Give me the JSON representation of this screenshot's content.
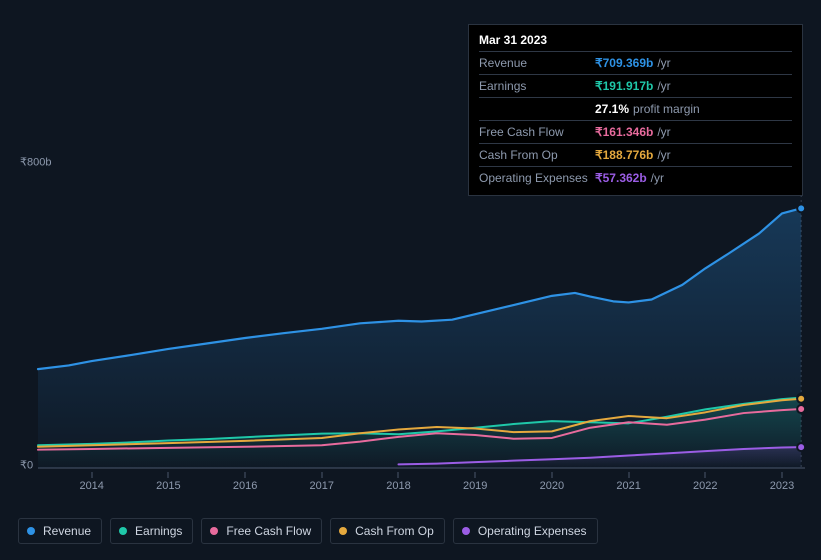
{
  "chart": {
    "type": "line-area",
    "background_color": "#0e1621",
    "grid_color": "#49566b",
    "ylim": [
      0,
      800
    ],
    "xlim": [
      2013.3,
      2023.3
    ],
    "y_ticks": [
      {
        "v": 800,
        "label": "₹800b"
      },
      {
        "v": 0,
        "label": "₹0"
      }
    ],
    "x_ticks": [
      {
        "v": 2014,
        "label": "2014"
      },
      {
        "v": 2015,
        "label": "2015"
      },
      {
        "v": 2016,
        "label": "2016"
      },
      {
        "v": 2017,
        "label": "2017"
      },
      {
        "v": 2018,
        "label": "2018"
      },
      {
        "v": 2019,
        "label": "2019"
      },
      {
        "v": 2020,
        "label": "2020"
      },
      {
        "v": 2021,
        "label": "2021"
      },
      {
        "v": 2022,
        "label": "2022"
      },
      {
        "v": 2023,
        "label": "2023"
      }
    ],
    "label_fontsize": 11,
    "label_color": "#8e9aae",
    "hover_x": 2023.25,
    "series": [
      {
        "id": "revenue",
        "label": "Revenue",
        "color": "#2e92e5",
        "fillTop": "rgba(46,146,229,0.28)",
        "fillBottom": "rgba(46,146,229,0.02)",
        "line_width": 2.2,
        "points": [
          [
            2013.3,
            270
          ],
          [
            2013.7,
            280
          ],
          [
            2014,
            292
          ],
          [
            2014.5,
            308
          ],
          [
            2015,
            325
          ],
          [
            2015.5,
            340
          ],
          [
            2016,
            355
          ],
          [
            2016.5,
            368
          ],
          [
            2017,
            380
          ],
          [
            2017.5,
            395
          ],
          [
            2018,
            402
          ],
          [
            2018.3,
            400
          ],
          [
            2018.7,
            405
          ],
          [
            2019,
            420
          ],
          [
            2019.5,
            445
          ],
          [
            2020,
            470
          ],
          [
            2020.3,
            478
          ],
          [
            2020.5,
            468
          ],
          [
            2020.8,
            455
          ],
          [
            2021,
            452
          ],
          [
            2021.3,
            460
          ],
          [
            2021.7,
            500
          ],
          [
            2022,
            545
          ],
          [
            2022.3,
            585
          ],
          [
            2022.7,
            640
          ],
          [
            2023,
            695
          ],
          [
            2023.25,
            709
          ]
        ],
        "marker_at_hover": true
      },
      {
        "id": "earnings",
        "label": "Earnings",
        "color": "#1fc8a9",
        "fillTop": "rgba(31,200,169,0.22)",
        "fillBottom": "rgba(31,200,169,0.0)",
        "line_width": 2,
        "points": [
          [
            2013.3,
            62
          ],
          [
            2014,
            66
          ],
          [
            2014.5,
            70
          ],
          [
            2015,
            75
          ],
          [
            2015.5,
            79
          ],
          [
            2016,
            84
          ],
          [
            2016.5,
            89
          ],
          [
            2017,
            94
          ],
          [
            2017.5,
            95
          ],
          [
            2018,
            92
          ],
          [
            2018.5,
            100
          ],
          [
            2019,
            110
          ],
          [
            2019.5,
            120
          ],
          [
            2020,
            128
          ],
          [
            2020.5,
            125
          ],
          [
            2021,
            122
          ],
          [
            2021.5,
            140
          ],
          [
            2022,
            160
          ],
          [
            2022.5,
            175
          ],
          [
            2023,
            188
          ],
          [
            2023.25,
            192
          ]
        ],
        "marker_at_hover": true
      },
      {
        "id": "fcf",
        "label": "Free Cash Flow",
        "color": "#e86b9d",
        "fillTop": "rgba(232,107,157,0.0)",
        "fillBottom": "rgba(232,107,157,0.0)",
        "line_width": 2,
        "points": [
          [
            2013.3,
            50
          ],
          [
            2014,
            52
          ],
          [
            2015,
            55
          ],
          [
            2016,
            58
          ],
          [
            2017,
            62
          ],
          [
            2017.5,
            72
          ],
          [
            2018,
            85
          ],
          [
            2018.5,
            95
          ],
          [
            2019,
            90
          ],
          [
            2019.5,
            80
          ],
          [
            2020,
            82
          ],
          [
            2020.5,
            110
          ],
          [
            2021,
            125
          ],
          [
            2021.5,
            118
          ],
          [
            2022,
            132
          ],
          [
            2022.5,
            150
          ],
          [
            2023,
            158
          ],
          [
            2023.25,
            161
          ]
        ],
        "marker_at_hover": true
      },
      {
        "id": "cfo",
        "label": "Cash From Op",
        "color": "#e5a93e",
        "fillTop": "rgba(229,169,62,0.0)",
        "fillBottom": "rgba(229,169,62,0.0)",
        "line_width": 2,
        "points": [
          [
            2013.3,
            58
          ],
          [
            2014,
            62
          ],
          [
            2015,
            68
          ],
          [
            2016,
            74
          ],
          [
            2017,
            82
          ],
          [
            2017.5,
            95
          ],
          [
            2018,
            105
          ],
          [
            2018.5,
            112
          ],
          [
            2019,
            108
          ],
          [
            2019.5,
            98
          ],
          [
            2020,
            100
          ],
          [
            2020.5,
            128
          ],
          [
            2021,
            142
          ],
          [
            2021.5,
            136
          ],
          [
            2022,
            152
          ],
          [
            2022.5,
            172
          ],
          [
            2023,
            185
          ],
          [
            2023.25,
            189
          ]
        ],
        "marker_at_hover": true
      },
      {
        "id": "opex",
        "label": "Operating Expenses",
        "color": "#9b5de5",
        "fillTop": "rgba(155,93,229,0.18)",
        "fillBottom": "rgba(155,93,229,0.0)",
        "line_width": 2,
        "start_x": 2018,
        "points": [
          [
            2018,
            10
          ],
          [
            2018.5,
            12
          ],
          [
            2019,
            16
          ],
          [
            2019.5,
            20
          ],
          [
            2020,
            24
          ],
          [
            2020.5,
            28
          ],
          [
            2021,
            34
          ],
          [
            2021.5,
            40
          ],
          [
            2022,
            46
          ],
          [
            2022.5,
            52
          ],
          [
            2023,
            56
          ],
          [
            2023.25,
            57
          ]
        ],
        "marker_at_hover": true
      }
    ]
  },
  "tooltip": {
    "date": "Mar 31 2023",
    "rows": [
      {
        "label": "Revenue",
        "value": "₹709.369b",
        "suffix": "/yr",
        "color": "#2e92e5"
      },
      {
        "label": "Earnings",
        "value": "₹191.917b",
        "suffix": "/yr",
        "color": "#1fc8a9"
      },
      {
        "label": "",
        "value": "27.1%",
        "suffix": "profit margin",
        "color": "#ffffff"
      },
      {
        "label": "Free Cash Flow",
        "value": "₹161.346b",
        "suffix": "/yr",
        "color": "#e86b9d"
      },
      {
        "label": "Cash From Op",
        "value": "₹188.776b",
        "suffix": "/yr",
        "color": "#e5a93e"
      },
      {
        "label": "Operating Expenses",
        "value": "₹57.362b",
        "suffix": "/yr",
        "color": "#9b5de5"
      }
    ]
  },
  "legend": {
    "items": [
      {
        "id": "revenue",
        "label": "Revenue",
        "color": "#2e92e5"
      },
      {
        "id": "earnings",
        "label": "Earnings",
        "color": "#1fc8a9"
      },
      {
        "id": "fcf",
        "label": "Free Cash Flow",
        "color": "#e86b9d"
      },
      {
        "id": "cfo",
        "label": "Cash From Op",
        "color": "#e5a93e"
      },
      {
        "id": "opex",
        "label": "Operating Expenses",
        "color": "#9b5de5"
      }
    ]
  }
}
